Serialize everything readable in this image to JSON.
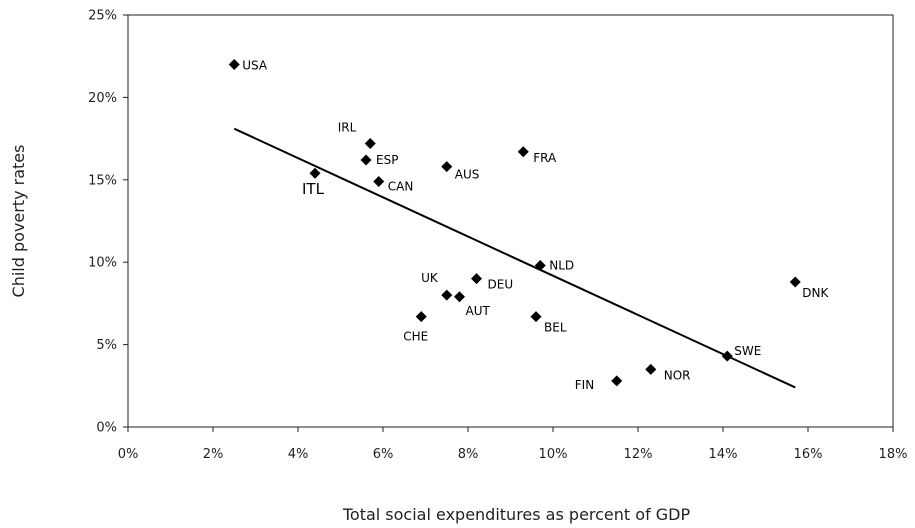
{
  "chart_data": {
    "type": "scatter",
    "title": "",
    "xlabel": "Total social expenditures as percent of GDP",
    "ylabel": "Child poverty rates",
    "xlim": [
      0,
      18
    ],
    "ylim": [
      0,
      25
    ],
    "x_ticks": [
      0,
      2,
      4,
      6,
      8,
      10,
      12,
      14,
      16,
      18
    ],
    "y_ticks": [
      0,
      5,
      10,
      15,
      20,
      25
    ],
    "x_tick_labels": [
      "0%",
      "2%",
      "4%",
      "6%",
      "8%",
      "10%",
      "12%",
      "14%",
      "16%",
      "18%"
    ],
    "y_tick_labels": [
      "0%",
      "5%",
      "10%",
      "15%",
      "20%",
      "25%"
    ],
    "grid": false,
    "legend": "none",
    "marker": "diamond",
    "marker_color": "#000000",
    "points": [
      {
        "label": "USA",
        "x": 2.5,
        "y": 22.0
      },
      {
        "label": "ITL",
        "x": 4.4,
        "y": 15.4
      },
      {
        "label": "IRL",
        "x": 5.7,
        "y": 17.2
      },
      {
        "label": "ESP",
        "x": 5.6,
        "y": 16.2
      },
      {
        "label": "CAN",
        "x": 5.9,
        "y": 14.9
      },
      {
        "label": "AUS",
        "x": 7.5,
        "y": 15.8
      },
      {
        "label": "FRA",
        "x": 9.3,
        "y": 16.7
      },
      {
        "label": "NLD",
        "x": 9.7,
        "y": 9.8
      },
      {
        "label": "DEU",
        "x": 8.2,
        "y": 9.0
      },
      {
        "label": "UK",
        "x": 7.5,
        "y": 8.0
      },
      {
        "label": "AUT",
        "x": 7.8,
        "y": 7.9
      },
      {
        "label": "CHE",
        "x": 6.9,
        "y": 6.7
      },
      {
        "label": "BEL",
        "x": 9.6,
        "y": 6.7
      },
      {
        "label": "DNK",
        "x": 15.7,
        "y": 8.8
      },
      {
        "label": "SWE",
        "x": 14.1,
        "y": 4.3
      },
      {
        "label": "FIN",
        "x": 11.5,
        "y": 2.8
      },
      {
        "label": "NOR",
        "x": 12.3,
        "y": 3.5
      }
    ],
    "trendline": {
      "type": "linear",
      "x": [
        2.5,
        15.7
      ],
      "y": [
        18.1,
        2.4
      ]
    }
  }
}
